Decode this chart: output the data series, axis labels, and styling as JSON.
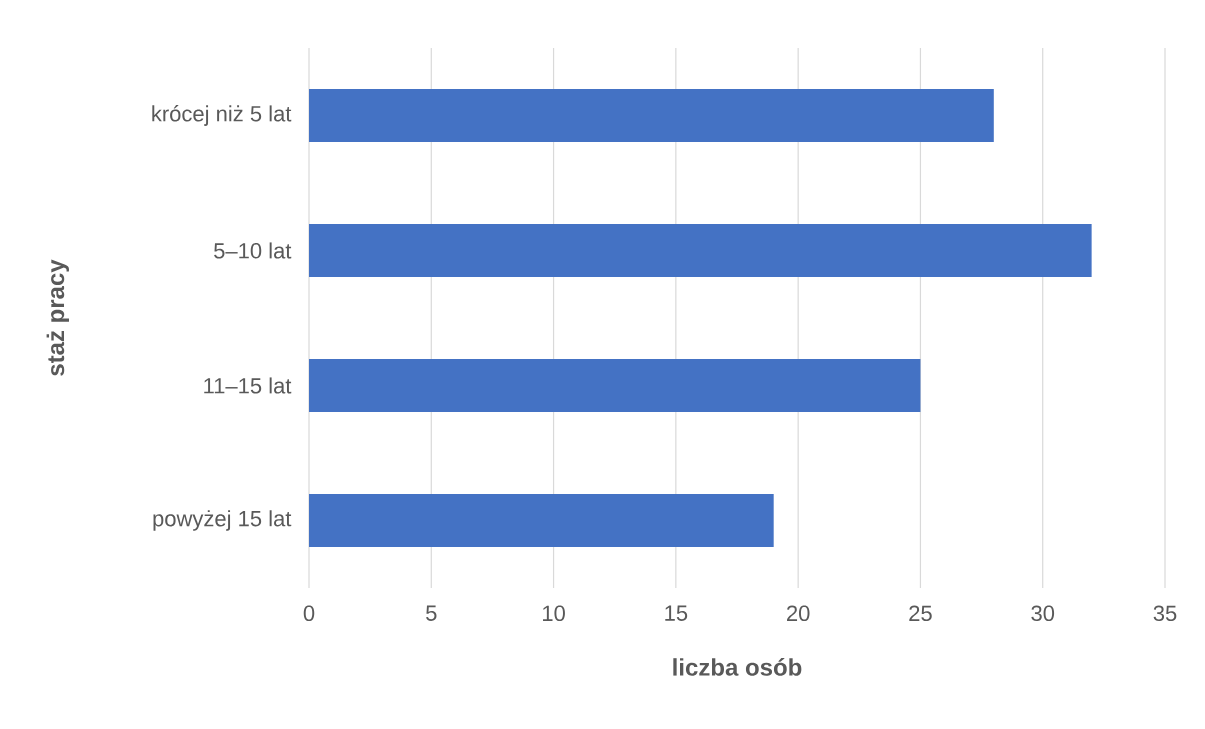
{
  "chart_data": {
    "type": "bar",
    "orientation": "horizontal",
    "categories": [
      "krócej niż 5 lat",
      "5–10 lat",
      "11–15 lat",
      "powyżej 15 lat"
    ],
    "values": [
      28,
      32,
      25,
      19
    ],
    "color": "#4472c4",
    "xlim": [
      0,
      35
    ],
    "xticks": [
      0,
      5,
      10,
      15,
      20,
      25,
      30,
      35
    ],
    "xlabel": "liczba osób",
    "ylabel": "staż pracy",
    "grid": "x"
  }
}
